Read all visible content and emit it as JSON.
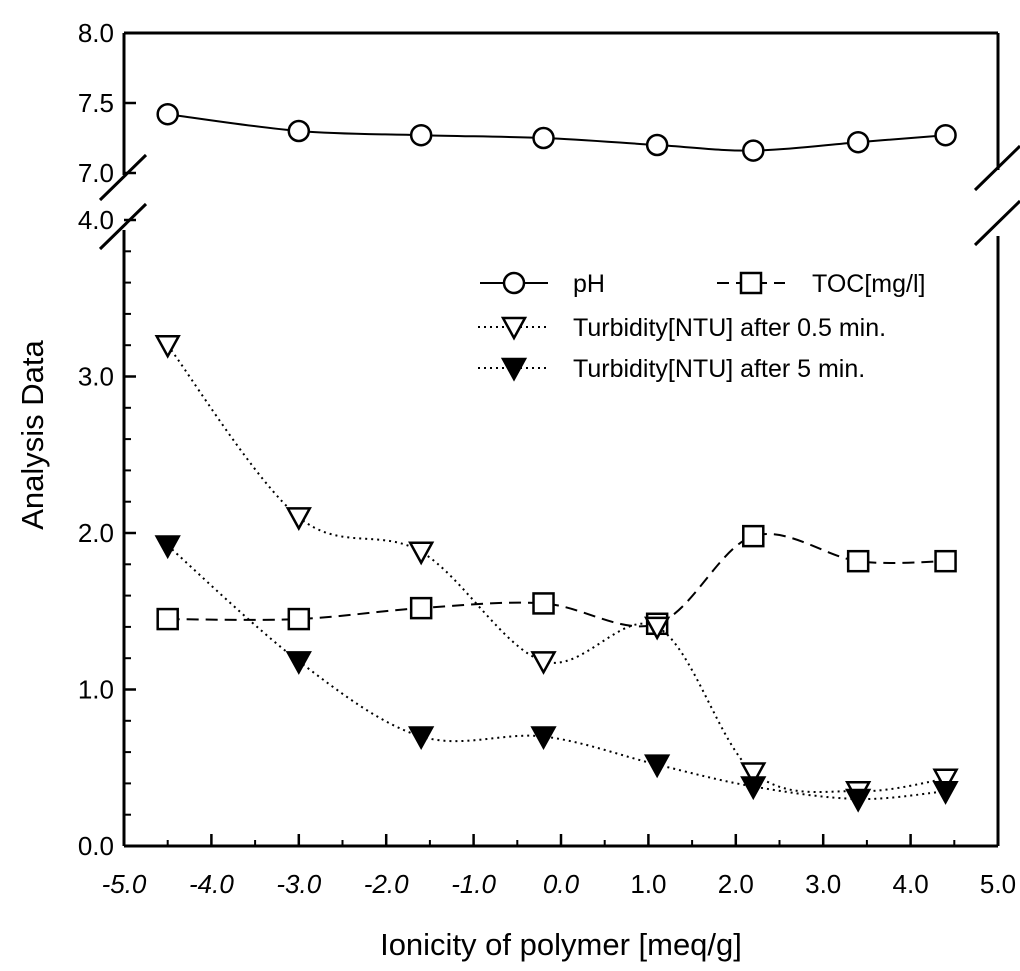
{
  "chart_data": {
    "type": "line",
    "title": "",
    "xlabel": "Ionicity of polymer [meq/g]",
    "ylabel": "Analysis Data",
    "xlim": [
      -5.0,
      5.0
    ],
    "ylim_lower": [
      0.0,
      4.0
    ],
    "ylim_upper": [
      7.0,
      8.0
    ],
    "axis_break": "y between 4.0 and 7.0",
    "x_ticks": [
      "-5.0",
      "-4.0",
      "-3.0",
      "-2.0",
      "-1.0",
      "0.0",
      "1.0",
      "2.0",
      "3.0",
      "4.0",
      "5.0"
    ],
    "y_ticks_lower": [
      "0.0",
      "1.0",
      "2.0",
      "3.0",
      "4.0"
    ],
    "y_ticks_upper": [
      "7.0",
      "7.5",
      "8.0"
    ],
    "x": [
      -4.5,
      -3.0,
      -1.6,
      -0.2,
      1.1,
      2.2,
      3.4,
      4.4
    ],
    "series": [
      {
        "name": "pH",
        "marker": "open-circle",
        "line": "solid",
        "panel": "upper",
        "values": [
          7.42,
          7.3,
          7.27,
          7.25,
          7.2,
          7.16,
          7.22,
          7.27
        ]
      },
      {
        "name": "TOC[mg/l]",
        "marker": "open-square",
        "line": "dashed",
        "panel": "lower",
        "values": [
          1.45,
          1.45,
          1.52,
          1.55,
          1.42,
          1.98,
          1.82,
          1.82
        ]
      },
      {
        "name": "Turbidity[NTU] after 0.5 min.",
        "marker": "open-triangle-down",
        "line": "dotted",
        "panel": "lower",
        "values": [
          3.2,
          2.1,
          1.88,
          1.18,
          1.4,
          0.47,
          0.35,
          0.43
        ]
      },
      {
        "name": "Turbidity[NTU] after 5 min.",
        "marker": "filled-triangle-down",
        "line": "dotted",
        "panel": "lower",
        "values": [
          1.92,
          1.18,
          0.7,
          0.7,
          0.52,
          0.38,
          0.3,
          0.35
        ]
      }
    ],
    "legend_position": "top-right",
    "grid": false
  }
}
